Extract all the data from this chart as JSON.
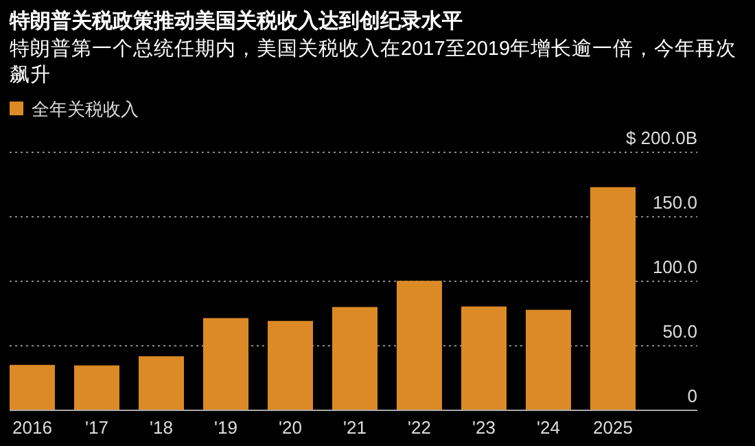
{
  "chart_data": {
    "type": "bar",
    "title": "特朗普关税政策推动美国关税收入达到创纪录水平",
    "subtitle": "特朗普第一个总统任期内，美国关税收入在2017至2019年增长逾一倍，今年再次飙升",
    "categories": [
      "2016",
      "'17",
      "'18",
      "'19",
      "'20",
      "'21",
      "'22",
      "'23",
      "'24",
      "2025"
    ],
    "series": [
      {
        "name": "全年关税收入",
        "color": "#dc8a26",
        "values": [
          35.2,
          34.8,
          41.9,
          71.5,
          69.3,
          80.1,
          100.4,
          80.5,
          77.9,
          173
        ]
      }
    ],
    "ylim": [
      0,
      200
    ],
    "yticks": [
      {
        "value": 0,
        "label": "0"
      },
      {
        "value": 50,
        "label": "50.0"
      },
      {
        "value": 100,
        "label": "100.0"
      },
      {
        "value": 150,
        "label": "150.0"
      },
      {
        "value": 200,
        "label": "$ 200.0B"
      }
    ],
    "grid": "y",
    "legend": "top left"
  }
}
